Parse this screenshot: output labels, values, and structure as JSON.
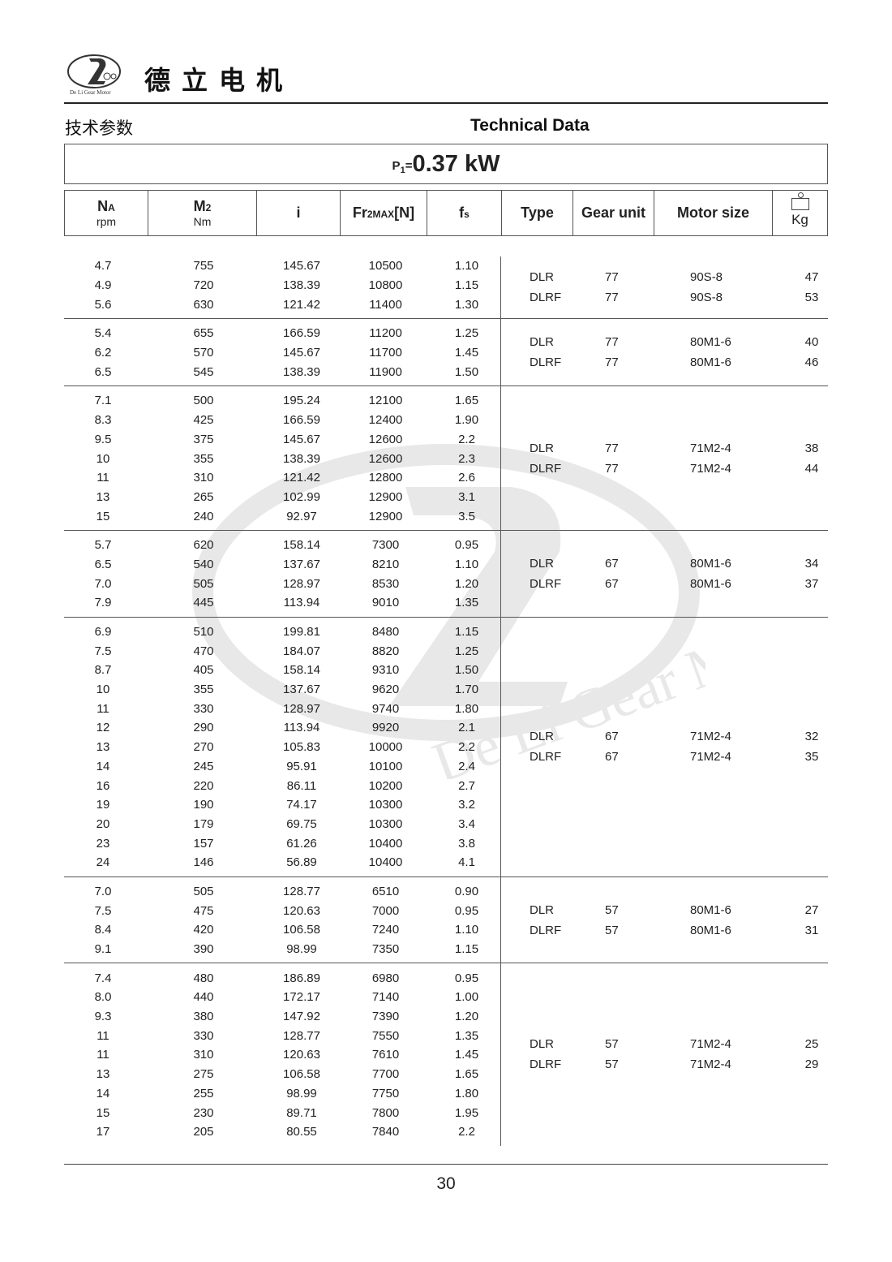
{
  "header": {
    "brand": "德立电机",
    "logo_text": "De Li Gear Motor",
    "title_cn": "技术参数",
    "title_en": "Technical Data"
  },
  "power": {
    "label": "P",
    "sub": "1",
    "eq": "=",
    "value": "0.37 kW"
  },
  "columns": {
    "na": {
      "main": "N",
      "sub": "A",
      "unit": "rpm"
    },
    "m2": {
      "main": "M",
      "sub": "2",
      "unit": "Nm"
    },
    "i": "i",
    "fr": {
      "main": "Fr",
      "sub": "2MAX",
      "rest": "[N]"
    },
    "fs": {
      "main": "f",
      "sub": "s"
    },
    "type": "Type",
    "gear": "Gear unit",
    "motor": "Motor size",
    "kg": "Kg"
  },
  "watermark": "De Li Gear Motor",
  "groups": [
    {
      "rows": [
        [
          "4.7",
          "755",
          "145.67",
          "10500",
          "1.10"
        ],
        [
          "4.9",
          "720",
          "138.39",
          "10800",
          "1.15"
        ],
        [
          "5.6",
          "630",
          "121.42",
          "11400",
          "1.30"
        ]
      ],
      "specs": [
        [
          "DLR",
          "77",
          "90S-8",
          "47"
        ],
        [
          "DLRF",
          "77",
          "90S-8",
          "53"
        ]
      ]
    },
    {
      "rows": [
        [
          "5.4",
          "655",
          "166.59",
          "11200",
          "1.25"
        ],
        [
          "6.2",
          "570",
          "145.67",
          "11700",
          "1.45"
        ],
        [
          "6.5",
          "545",
          "138.39",
          "11900",
          "1.50"
        ]
      ],
      "specs": [
        [
          "DLR",
          "77",
          "80M1-6",
          "40"
        ],
        [
          "DLRF",
          "77",
          "80M1-6",
          "46"
        ]
      ]
    },
    {
      "rows": [
        [
          "7.1",
          "500",
          "195.24",
          "12100",
          "1.65"
        ],
        [
          "8.3",
          "425",
          "166.59",
          "12400",
          "1.90"
        ],
        [
          "9.5",
          "375",
          "145.67",
          "12600",
          "2.2"
        ],
        [
          "10",
          "355",
          "138.39",
          "12600",
          "2.3"
        ],
        [
          "11",
          "310",
          "121.42",
          "12800",
          "2.6"
        ],
        [
          "13",
          "265",
          "102.99",
          "12900",
          "3.1"
        ],
        [
          "15",
          "240",
          "92.97",
          "12900",
          "3.5"
        ]
      ],
      "specs": [
        [
          "DLR",
          "77",
          "71M2-4",
          "38"
        ],
        [
          "DLRF",
          "77",
          "71M2-4",
          "44"
        ]
      ]
    },
    {
      "rows": [
        [
          "5.7",
          "620",
          "158.14",
          "7300",
          "0.95"
        ],
        [
          "6.5",
          "540",
          "137.67",
          "8210",
          "1.10"
        ],
        [
          "7.0",
          "505",
          "128.97",
          "8530",
          "1.20"
        ],
        [
          "7.9",
          "445",
          "113.94",
          "9010",
          "1.35"
        ]
      ],
      "specs": [
        [
          "DLR",
          "67",
          "80M1-6",
          "34"
        ],
        [
          "DLRF",
          "67",
          "80M1-6",
          "37"
        ]
      ]
    },
    {
      "rows": [
        [
          "6.9",
          "510",
          "199.81",
          "8480",
          "1.15"
        ],
        [
          "7.5",
          "470",
          "184.07",
          "8820",
          "1.25"
        ],
        [
          "8.7",
          "405",
          "158.14",
          "9310",
          "1.50"
        ],
        [
          "10",
          "355",
          "137.67",
          "9620",
          "1.70"
        ],
        [
          "11",
          "330",
          "128.97",
          "9740",
          "1.80"
        ],
        [
          "12",
          "290",
          "113.94",
          "9920",
          "2.1"
        ],
        [
          "13",
          "270",
          "105.83",
          "10000",
          "2.2"
        ],
        [
          "14",
          "245",
          "95.91",
          "10100",
          "2.4"
        ],
        [
          "16",
          "220",
          "86.11",
          "10200",
          "2.7"
        ],
        [
          "19",
          "190",
          "74.17",
          "10300",
          "3.2"
        ],
        [
          "20",
          "179",
          "69.75",
          "10300",
          "3.4"
        ],
        [
          "23",
          "157",
          "61.26",
          "10400",
          "3.8"
        ],
        [
          "24",
          "146",
          "56.89",
          "10400",
          "4.1"
        ]
      ],
      "specs": [
        [
          "DLR",
          "67",
          "71M2-4",
          "32"
        ],
        [
          "DLRF",
          "67",
          "71M2-4",
          "35"
        ]
      ]
    },
    {
      "rows": [
        [
          "7.0",
          "505",
          "128.77",
          "6510",
          "0.90"
        ],
        [
          "7.5",
          "475",
          "120.63",
          "7000",
          "0.95"
        ],
        [
          "8.4",
          "420",
          "106.58",
          "7240",
          "1.10"
        ],
        [
          "9.1",
          "390",
          "98.99",
          "7350",
          "1.15"
        ]
      ],
      "specs": [
        [
          "DLR",
          "57",
          "80M1-6",
          "27"
        ],
        [
          "DLRF",
          "57",
          "80M1-6",
          "31"
        ]
      ]
    },
    {
      "rows": [
        [
          "7.4",
          "480",
          "186.89",
          "6980",
          "0.95"
        ],
        [
          "8.0",
          "440",
          "172.17",
          "7140",
          "1.00"
        ],
        [
          "9.3",
          "380",
          "147.92",
          "7390",
          "1.20"
        ],
        [
          "11",
          "330",
          "128.77",
          "7550",
          "1.35"
        ],
        [
          "11",
          "310",
          "120.63",
          "7610",
          "1.45"
        ],
        [
          "13",
          "275",
          "106.58",
          "7700",
          "1.65"
        ],
        [
          "14",
          "255",
          "98.99",
          "7750",
          "1.80"
        ],
        [
          "15",
          "230",
          "89.71",
          "7800",
          "1.95"
        ],
        [
          "17",
          "205",
          "80.55",
          "7840",
          "2.2"
        ]
      ],
      "specs": [
        [
          "DLR",
          "57",
          "71M2-4",
          "25"
        ],
        [
          "DLRF",
          "57",
          "71M2-4",
          "29"
        ]
      ]
    }
  ],
  "footer": {
    "page": "30"
  }
}
